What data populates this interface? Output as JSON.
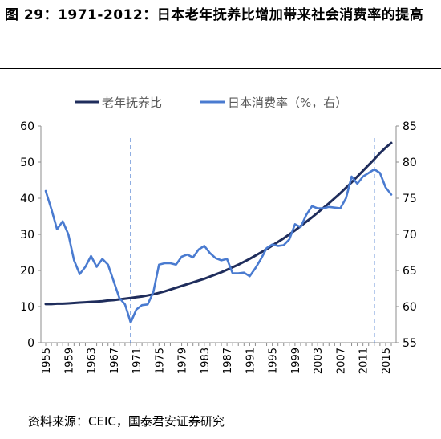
{
  "title": "图 29：1971-2012：日本老年抚养比增加带来社会消费率的提高",
  "source": "资料来源：CEIC，国泰君安证券研究",
  "chart_data": {
    "type": "line",
    "x": [
      1955,
      1956,
      1957,
      1958,
      1959,
      1960,
      1961,
      1962,
      1963,
      1964,
      1965,
      1966,
      1967,
      1968,
      1969,
      1970,
      1971,
      1972,
      1973,
      1974,
      1975,
      1976,
      1977,
      1978,
      1979,
      1980,
      1981,
      1982,
      1983,
      1984,
      1985,
      1986,
      1987,
      1988,
      1989,
      1990,
      1991,
      1992,
      1993,
      1994,
      1995,
      1996,
      1997,
      1998,
      1999,
      2000,
      2001,
      2002,
      2003,
      2004,
      2005,
      2006,
      2007,
      2008,
      2009,
      2010,
      2011,
      2012,
      2013,
      2014,
      2015,
      2016
    ],
    "xticks": [
      "1955",
      "1959",
      "1963",
      "1967",
      "1971",
      "1975",
      "1979",
      "1983",
      "1987",
      "1991",
      "1995",
      "1999",
      "2003",
      "2007",
      "2011",
      "2015"
    ],
    "ylim_left": [
      0,
      60
    ],
    "yticks_left": [
      "0",
      "10",
      "20",
      "30",
      "40",
      "50",
      "60"
    ],
    "ylim_right": [
      55,
      85
    ],
    "yticks_right": [
      "55",
      "60",
      "65",
      "70",
      "75",
      "80",
      "85"
    ],
    "vlines": [
      1970,
      2013
    ],
    "series": [
      {
        "name": "老年抚养比",
        "axis": "left",
        "color": "#1f2d5c",
        "values": [
          10.7,
          10.7,
          10.8,
          10.8,
          10.9,
          11.0,
          11.1,
          11.2,
          11.3,
          11.4,
          11.5,
          11.7,
          11.8,
          12.0,
          12.2,
          12.4,
          12.6,
          12.8,
          13.1,
          13.4,
          13.8,
          14.2,
          14.7,
          15.2,
          15.7,
          16.2,
          16.7,
          17.2,
          17.7,
          18.3,
          18.9,
          19.5,
          20.2,
          20.9,
          21.6,
          22.4,
          23.2,
          24.1,
          25.0,
          25.9,
          26.9,
          27.9,
          28.9,
          30.0,
          31.1,
          32.3,
          33.5,
          34.7,
          36.0,
          37.3,
          38.6,
          40.0,
          41.4,
          42.9,
          44.4,
          46.0,
          47.6,
          49.2,
          50.8,
          52.5,
          54.0,
          55.3
        ]
      },
      {
        "name": "日本消费率（%，右）",
        "axis": "right",
        "color": "#4a7bd0",
        "values": [
          76.0,
          73.5,
          70.7,
          71.8,
          70.0,
          66.4,
          64.5,
          65.5,
          67.0,
          65.5,
          66.6,
          65.8,
          63.5,
          61.2,
          60.3,
          57.8,
          59.6,
          60.2,
          60.3,
          62.0,
          65.8,
          66.0,
          66.0,
          65.8,
          66.9,
          67.2,
          66.8,
          67.9,
          68.4,
          67.4,
          66.7,
          66.4,
          66.6,
          64.6,
          64.6,
          64.7,
          64.2,
          65.3,
          66.6,
          68.1,
          68.6,
          68.4,
          68.5,
          69.3,
          71.4,
          71.0,
          72.7,
          73.9,
          73.6,
          73.6,
          73.8,
          73.7,
          73.6,
          75.0,
          78.0,
          77.0,
          78.0,
          78.5,
          79.0,
          78.5,
          76.5,
          75.5
        ]
      }
    ]
  }
}
